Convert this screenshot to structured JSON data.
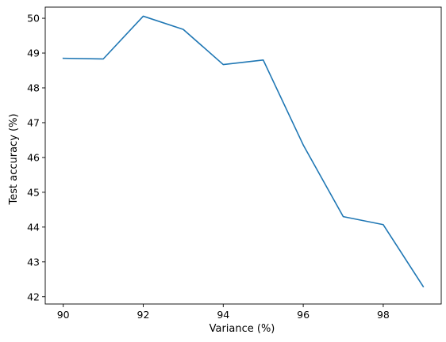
{
  "chart_data": {
    "type": "line",
    "title": "",
    "xlabel": "Variance (%)",
    "ylabel": "Test accuracy (%)",
    "grid": false,
    "legend": "none",
    "xlim": [
      89.55,
      99.45
    ],
    "ylim": [
      41.79,
      50.32
    ],
    "xticks": [
      90,
      92,
      94,
      96,
      98
    ],
    "yticks": [
      42,
      43,
      44,
      45,
      46,
      47,
      48,
      49,
      50
    ],
    "series": [
      {
        "color": "#1f77b4",
        "x": [
          90,
          91,
          92,
          93,
          94,
          95,
          96,
          97,
          98,
          99
        ],
        "y": [
          48.85,
          48.83,
          50.06,
          49.68,
          48.67,
          48.8,
          46.36,
          44.3,
          44.07,
          42.29
        ]
      }
    ]
  }
}
